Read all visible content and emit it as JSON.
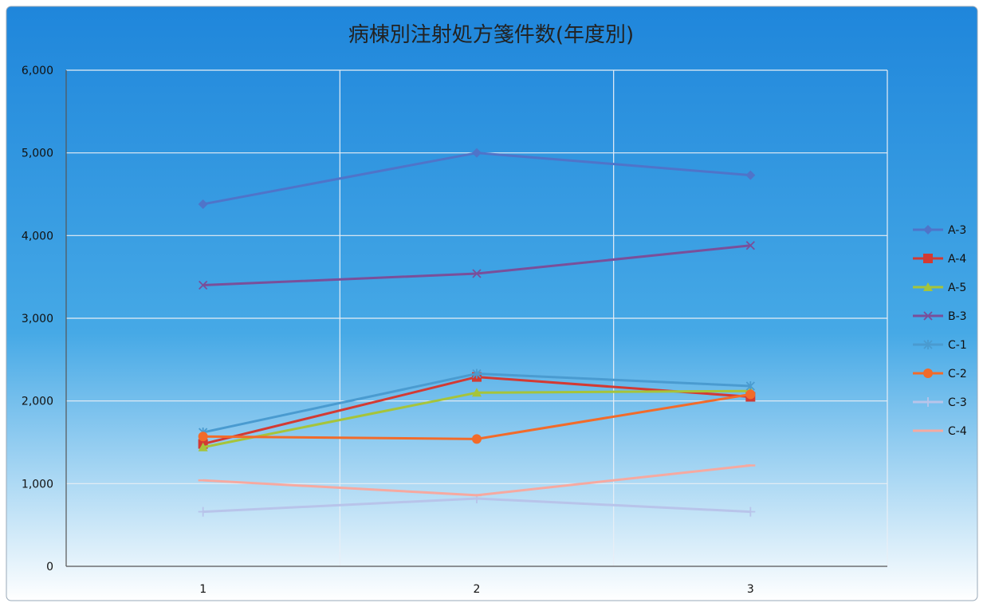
{
  "chart_data": {
    "type": "line",
    "title": "病棟別注射処方箋件数(年度別)",
    "xlabel": "",
    "ylabel": "",
    "categories": [
      "1",
      "2",
      "3"
    ],
    "ylim": [
      0,
      6000
    ],
    "yticks": [
      0,
      1000,
      2000,
      3000,
      4000,
      5000,
      6000
    ],
    "ytick_labels": [
      "0",
      "1,000",
      "2,000",
      "3,000",
      "4,000",
      "5,000",
      "6,000"
    ],
    "grid": true,
    "legend_position": "right",
    "series": [
      {
        "name": "A-3",
        "values": [
          4380,
          5000,
          4730
        ],
        "color": "#4f74c9",
        "marker": "diamond"
      },
      {
        "name": "A-4",
        "values": [
          1480,
          2290,
          2050
        ],
        "color": "#d33a33",
        "marker": "square"
      },
      {
        "name": "A-5",
        "values": [
          1440,
          2100,
          2120
        ],
        "color": "#a6c43a",
        "marker": "triangle"
      },
      {
        "name": "B-3",
        "values": [
          3400,
          3540,
          3880
        ],
        "color": "#7a4f9a",
        "marker": "x"
      },
      {
        "name": "C-1",
        "values": [
          1620,
          2330,
          2180
        ],
        "color": "#4a9bd0",
        "marker": "star"
      },
      {
        "name": "C-2",
        "values": [
          1570,
          1540,
          2080
        ],
        "color": "#f26b2a",
        "marker": "circle"
      },
      {
        "name": "C-3",
        "values": [
          660,
          820,
          660
        ],
        "color": "#b8c4ea",
        "marker": "plus"
      },
      {
        "name": "C-4",
        "values": [
          1040,
          860,
          1220
        ],
        "color": "#f6a9a0",
        "marker": "dash"
      }
    ]
  }
}
